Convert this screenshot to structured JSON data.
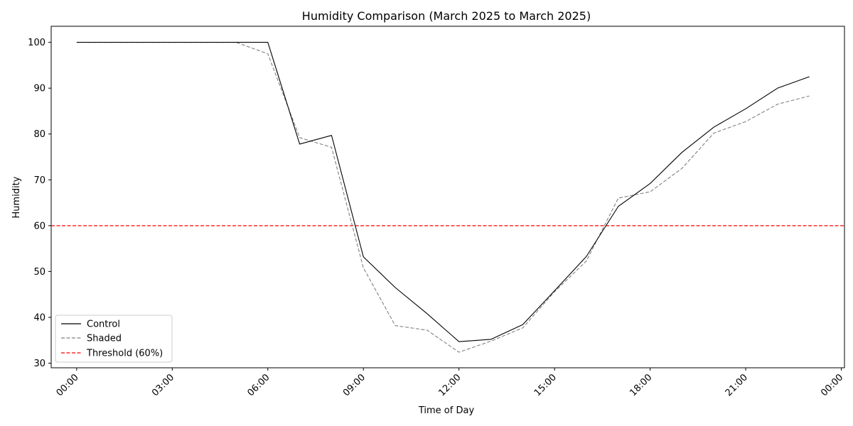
{
  "chart_data": {
    "type": "line",
    "title": "Humidity Comparison (March 2025 to March 2025)",
    "xlabel": "Time of Day",
    "ylabel": "Humidity",
    "x_hours": [
      0,
      1,
      2,
      3,
      4,
      5,
      6,
      7,
      8,
      9,
      10,
      11,
      12,
      13,
      14,
      15,
      16,
      17,
      18,
      19,
      20,
      21,
      22,
      23
    ],
    "xlim_hours": [
      -0.8,
      24.1
    ],
    "ylim": [
      29,
      103.5
    ],
    "x_ticks": [
      {
        "hour": 0,
        "label": "00:00"
      },
      {
        "hour": 3,
        "label": "03:00"
      },
      {
        "hour": 6,
        "label": "06:00"
      },
      {
        "hour": 9,
        "label": "09:00"
      },
      {
        "hour": 12,
        "label": "12:00"
      },
      {
        "hour": 15,
        "label": "15:00"
      },
      {
        "hour": 18,
        "label": "18:00"
      },
      {
        "hour": 21,
        "label": "21:00"
      },
      {
        "hour": 24,
        "label": "00:00"
      }
    ],
    "y_ticks": [
      30,
      40,
      50,
      60,
      70,
      80,
      90,
      100
    ],
    "grid": false,
    "legend_position": "lower-left",
    "series": [
      {
        "name": "Control",
        "color": "#000000",
        "style": "solid",
        "values": [
          100,
          100,
          100,
          100,
          100,
          100,
          100,
          77.8,
          79.7,
          53.2,
          46.5,
          40.8,
          34.7,
          35.2,
          38.4,
          45.8,
          53.3,
          64.2,
          69.2,
          76.0,
          81.5,
          85.5,
          90.0,
          92.5
        ]
      },
      {
        "name": "Shaded",
        "color": "#808080",
        "style": "dashed",
        "values": [
          100,
          100,
          100,
          100,
          100,
          100,
          97.5,
          79.2,
          77.1,
          50.8,
          38.2,
          37.2,
          32.4,
          34.8,
          37.7,
          45.6,
          52.3,
          66.0,
          67.4,
          72.5,
          80.2,
          82.7,
          86.5,
          88.3
        ]
      }
    ],
    "threshold": {
      "name": "Threshold (60%)",
      "value": 60,
      "color": "#ff0000",
      "style": "dashed"
    }
  }
}
